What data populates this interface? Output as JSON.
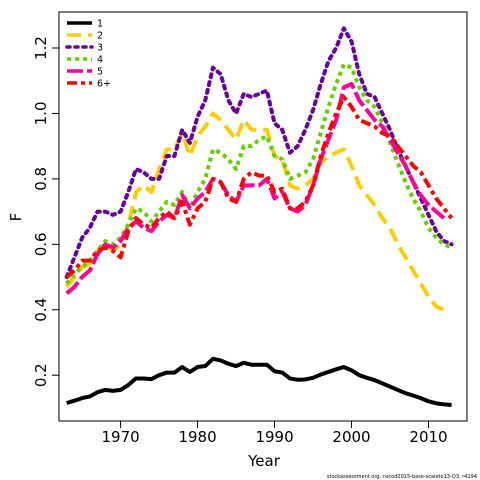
{
  "chart_data": {
    "type": "line",
    "xlabel": "Year",
    "ylabel": "F",
    "xlim": [
      1962,
      2015
    ],
    "ylim": [
      0.06,
      1.31
    ],
    "xticks": [
      1970,
      1980,
      1990,
      2000,
      2010
    ],
    "yticks": [
      0.2,
      0.4,
      0.6,
      0.8,
      1.0,
      1.2
    ],
    "ytick_labels": [
      "0.2",
      "0.4",
      "0.6",
      "0.8",
      "1.0",
      "1.2"
    ],
    "grid": false,
    "legend_position": "top-left",
    "x": [
      1963,
      1964,
      1965,
      1966,
      1967,
      1968,
      1969,
      1970,
      1971,
      1972,
      1973,
      1974,
      1975,
      1976,
      1977,
      1978,
      1979,
      1980,
      1981,
      1982,
      1983,
      1984,
      1985,
      1986,
      1987,
      1988,
      1989,
      1990,
      1991,
      1992,
      1993,
      1994,
      1995,
      1996,
      1997,
      1998,
      1999,
      2000,
      2001,
      2002,
      2003,
      2004,
      2005,
      2006,
      2007,
      2008,
      2009,
      2010,
      2011,
      2012,
      2013
    ],
    "series": [
      {
        "name": "1",
        "color": "#000000",
        "dash": "solid",
        "values": [
          0.115,
          0.122,
          0.13,
          0.135,
          0.148,
          0.155,
          0.152,
          0.155,
          0.17,
          0.19,
          0.19,
          0.188,
          0.2,
          0.208,
          0.208,
          0.225,
          0.21,
          0.225,
          0.228,
          0.25,
          0.245,
          0.235,
          0.228,
          0.238,
          0.232,
          0.232,
          0.232,
          0.212,
          0.208,
          0.19,
          0.186,
          0.187,
          0.192,
          0.202,
          0.21,
          0.218,
          0.225,
          0.215,
          0.2,
          0.192,
          0.185,
          0.175,
          0.165,
          0.155,
          0.145,
          0.138,
          0.13,
          0.12,
          0.114,
          0.111,
          0.109
        ]
      },
      {
        "name": "2",
        "color": "#ffcc00",
        "dash": "long",
        "values": [
          0.47,
          0.5,
          0.53,
          0.54,
          0.58,
          0.6,
          0.58,
          0.6,
          0.66,
          0.76,
          0.78,
          0.76,
          0.83,
          0.89,
          0.89,
          0.94,
          0.87,
          0.93,
          0.96,
          1.0,
          0.98,
          0.95,
          0.92,
          0.98,
          0.95,
          0.95,
          0.95,
          0.87,
          0.86,
          0.78,
          0.77,
          0.78,
          0.8,
          0.85,
          0.87,
          0.88,
          0.89,
          0.84,
          0.78,
          0.75,
          0.72,
          0.68,
          0.65,
          0.6,
          0.56,
          0.52,
          0.48,
          0.44,
          0.41,
          0.4,
          null
        ]
      },
      {
        "name": "3",
        "color": "#660099",
        "dash": "dotted",
        "values": [
          0.5,
          0.56,
          0.62,
          0.65,
          0.7,
          0.7,
          0.69,
          0.7,
          0.76,
          0.83,
          0.82,
          0.8,
          0.8,
          0.87,
          0.87,
          0.95,
          0.91,
          0.99,
          1.04,
          1.14,
          1.12,
          1.04,
          1.0,
          1.06,
          1.05,
          1.06,
          1.07,
          0.97,
          0.95,
          0.88,
          0.9,
          0.95,
          1.01,
          1.09,
          1.16,
          1.2,
          1.26,
          1.22,
          1.12,
          1.06,
          1.05,
          1.0,
          0.95,
          0.89,
          0.84,
          0.79,
          0.74,
          0.69,
          0.64,
          0.61,
          0.6
        ]
      },
      {
        "name": "4",
        "color": "#66cc00",
        "dash": "dashdot",
        "values": [
          0.48,
          0.51,
          0.53,
          0.55,
          0.58,
          0.61,
          0.6,
          0.62,
          0.66,
          0.71,
          0.7,
          0.67,
          0.7,
          0.73,
          0.72,
          0.76,
          0.71,
          0.76,
          0.8,
          0.89,
          0.88,
          0.86,
          0.83,
          0.9,
          0.9,
          0.92,
          0.93,
          0.87,
          0.86,
          0.8,
          0.81,
          0.82,
          0.86,
          0.94,
          1.02,
          1.09,
          1.15,
          1.14,
          1.08,
          1.04,
          1.02,
          0.97,
          0.91,
          0.85,
          0.79,
          0.74,
          0.7,
          0.65,
          0.62,
          0.6,
          0.59
        ]
      },
      {
        "name": "5",
        "color": "#ff0099",
        "dash": "longdash",
        "values": [
          0.45,
          0.47,
          0.5,
          0.52,
          0.57,
          0.6,
          0.59,
          0.61,
          0.65,
          0.67,
          0.65,
          0.64,
          0.67,
          0.69,
          0.68,
          0.75,
          0.71,
          0.74,
          0.76,
          0.8,
          0.79,
          0.75,
          0.73,
          0.78,
          0.78,
          0.78,
          0.8,
          0.74,
          0.76,
          0.71,
          0.7,
          0.72,
          0.78,
          0.86,
          0.92,
          0.98,
          1.08,
          1.09,
          1.04,
          1.01,
          0.98,
          0.96,
          0.92,
          0.88,
          0.84,
          0.79,
          0.75,
          0.72,
          0.7,
          0.68,
          null
        ]
      },
      {
        "name": "6+",
        "color": "#ff0000",
        "dash": "twodash",
        "values": [
          0.5,
          0.52,
          0.55,
          0.55,
          0.58,
          0.59,
          0.58,
          0.56,
          0.64,
          0.68,
          0.66,
          0.65,
          0.68,
          0.7,
          0.68,
          0.73,
          0.66,
          0.71,
          0.73,
          0.8,
          0.79,
          0.74,
          0.73,
          0.8,
          0.82,
          0.81,
          0.81,
          0.76,
          0.77,
          0.71,
          0.71,
          0.73,
          0.78,
          0.87,
          0.94,
          1.0,
          1.05,
          1.02,
          0.98,
          0.97,
          0.96,
          0.94,
          0.93,
          0.9,
          0.87,
          0.84,
          0.82,
          0.78,
          0.74,
          0.71,
          0.68
        ]
      }
    ]
  },
  "credit": "stockassessment.org, nscod2015-base-scaleto13-Q3, r4194"
}
